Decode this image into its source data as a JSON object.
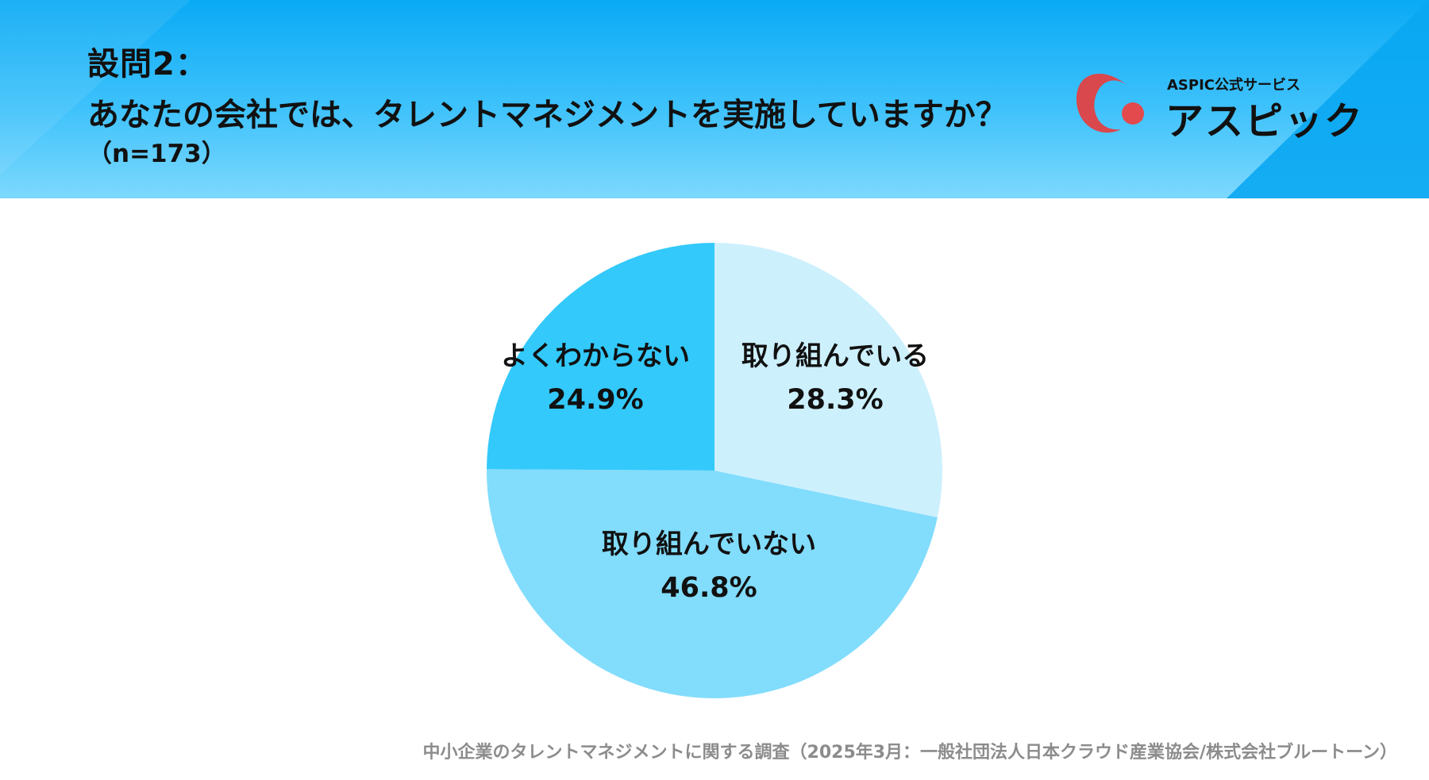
{
  "header": {
    "question_number": "設問2：",
    "question_text": "あなたの会社では、タレントマネジメントを実施していますか？",
    "sample_size": "（n=173）"
  },
  "logo": {
    "tagline": "ASPIC公式サービス",
    "name": "アスピック",
    "colors": {
      "arc": "#d9484c",
      "dot": "#e34a4d"
    },
    "icon": "aspic-logo-icon"
  },
  "chart_data": {
    "type": "pie",
    "title": "",
    "slices": [
      {
        "label": "取り組んでいる",
        "value": 28.3,
        "display": "28.3%",
        "color": "#cdf0fd"
      },
      {
        "label": "取り組んでいない",
        "value": 46.8,
        "display": "46.8%",
        "color": "#82dcfc"
      },
      {
        "label": "よくわからない",
        "value": 24.9,
        "display": "24.9%",
        "color": "#33c9fb"
      }
    ],
    "start": "12 o'clock",
    "direction": "clockwise"
  },
  "source": "中小企業のタレントマネジメントに関する調査（2025年3月：一般社団法人日本クラウド産業協会/株式会社ブルートーン）"
}
